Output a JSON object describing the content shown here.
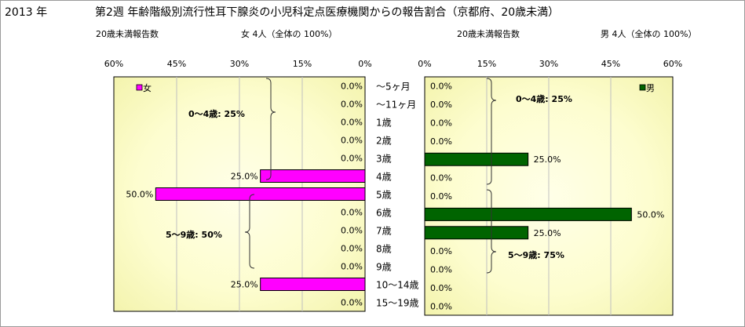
{
  "header": {
    "year": "2013 年",
    "title": "第2週 年齢階級別流行性耳下腺炎の小児科定点医療機関からの報告割合（京都府、20歳未満）"
  },
  "female": {
    "count_label": "20歳未満報告数",
    "count_value": "女 4人（全体の 100%）",
    "legend": "女",
    "color": "#ff00ff",
    "group_labels": [
      "0～4歳: 25%",
      "5～9歳: 50%"
    ]
  },
  "male": {
    "count_label": "20歳未満報告数",
    "count_value": "男 4人（全体の 100%）",
    "legend": "男",
    "color": "#006400",
    "group_labels": [
      "0～4歳: 25%",
      "5～9歳: 75%"
    ]
  },
  "chart_data": [
    {
      "type": "bar",
      "orientation": "horizontal",
      "series": [
        {
          "name": "女",
          "values": [
            0,
            0,
            0,
            0,
            0,
            25,
            50,
            0,
            0,
            0,
            0,
            25,
            0
          ]
        }
      ],
      "categories": [
        "～5ヶ月",
        "～11ヶ月",
        "1歳",
        "2歳",
        "3歳",
        "4歳",
        "5歳",
        "6歳",
        "7歳",
        "8歳",
        "9歳",
        "10～14歳",
        "15～19歳"
      ],
      "data_labels": [
        "0.0%",
        "0.0%",
        "0.0%",
        "0.0%",
        "0.0%",
        "25.0%",
        "50.0%",
        "0.0%",
        "0.0%",
        "0.0%",
        "0.0%",
        "25.0%",
        "0.0%"
      ],
      "xlim": [
        0,
        60
      ],
      "x_reversed": true,
      "xticks": [
        "60%",
        "45%",
        "30%",
        "15%",
        "0%"
      ],
      "grid": true,
      "legend": "top-left"
    },
    {
      "type": "bar",
      "orientation": "horizontal",
      "series": [
        {
          "name": "男",
          "values": [
            0,
            0,
            0,
            0,
            25,
            0,
            0,
            50,
            25,
            0,
            0,
            0,
            0
          ]
        }
      ],
      "categories": [
        "～5ヶ月",
        "～11ヶ月",
        "1歳",
        "2歳",
        "3歳",
        "4歳",
        "5歳",
        "6歳",
        "7歳",
        "8歳",
        "9歳",
        "10～14歳",
        "15～19歳"
      ],
      "data_labels": [
        "0.0%",
        "0.0%",
        "0.0%",
        "0.0%",
        "25.0%",
        "0.0%",
        "0.0%",
        "50.0%",
        "25.0%",
        "0.0%",
        "0.0%",
        "0.0%",
        "0.0%"
      ],
      "xlim": [
        0,
        60
      ],
      "xticks": [
        "0%",
        "15%",
        "30%",
        "45%",
        "60%"
      ],
      "grid": true,
      "legend": "top-right"
    }
  ]
}
